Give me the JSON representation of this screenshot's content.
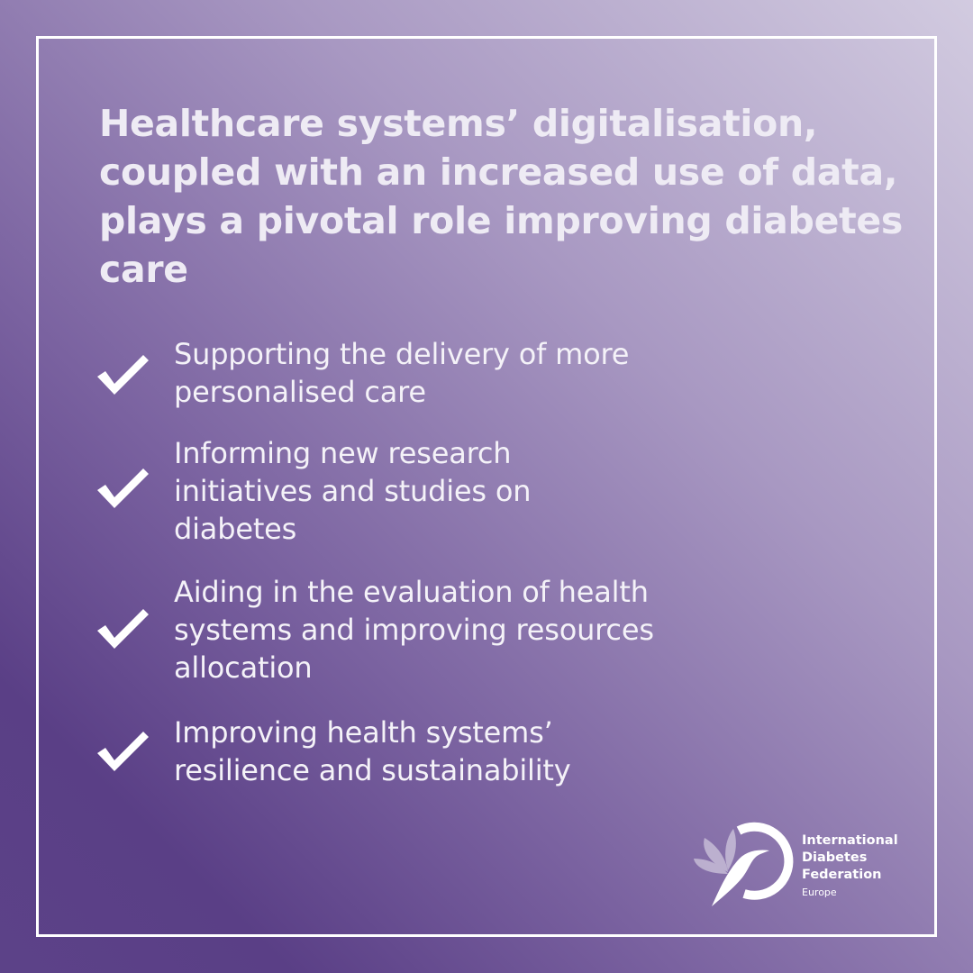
{
  "headline": "Healthcare systems’ digitalisation, coupled with an increased use of data, plays a pivotal role improving diabetes care",
  "items": [
    {
      "icon": "checkmark-icon",
      "text": "Supporting the delivery of more personalised care"
    },
    {
      "icon": "checkmark-icon",
      "text": "Informing new research initiatives and studies on diabetes"
    },
    {
      "icon": "checkmark-icon",
      "text": "Aiding in the evaluation of health systems and improving resources allocation"
    },
    {
      "icon": "checkmark-icon",
      "text": "Improving health systems’ resilience and sustainability"
    }
  ],
  "logo": {
    "line1": "International",
    "line2": "Diabetes",
    "line3": "Federation",
    "line4": "Europe"
  },
  "colors": {
    "gradient_dark": "#5a3f86",
    "gradient_light": "#d2cbe0",
    "frame": "#ffffff"
  }
}
